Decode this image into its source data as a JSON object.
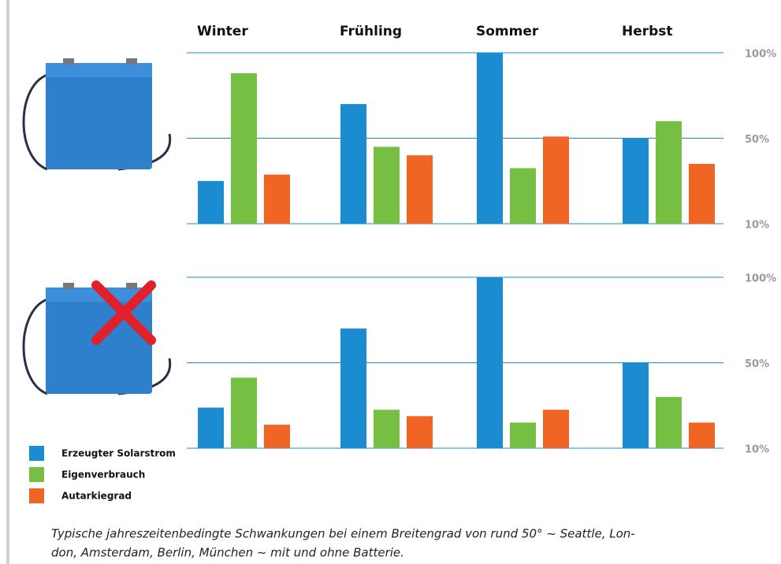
{
  "chart_data": [
    {
      "type": "bar",
      "categories": [
        "Winter",
        "Frühling",
        "Sommer",
        "Herbst"
      ],
      "series": [
        {
          "name": "Erzeugter Solarstrom",
          "color": "#1b8ccf",
          "values": [
            30,
            70,
            100,
            50
          ]
        },
        {
          "name": "Eigenverbrauch",
          "color": "#76bf43",
          "values": [
            88,
            46,
            36,
            60
          ]
        },
        {
          "name": "Autarkiegrad",
          "color": "#f06424",
          "values": [
            33,
            42,
            51,
            38
          ]
        }
      ],
      "ylim": [
        10,
        100
      ],
      "yticks": [
        {
          "value": 10,
          "label": "10%"
        },
        {
          "value": 50,
          "label": "50%"
        },
        {
          "value": 100,
          "label": "100%"
        }
      ],
      "grid": true
    },
    {
      "type": "bar",
      "series": [
        {
          "color": "#1b8ccf",
          "values": [
            29,
            70,
            100,
            50
          ]
        },
        {
          "color": "#76bf43",
          "values": [
            43,
            28,
            22,
            34
          ]
        },
        {
          "color": "#f06424",
          "values": [
            21,
            25,
            28,
            22
          ]
        }
      ],
      "ylim": [
        10,
        100
      ],
      "yticks": [
        {
          "value": 10,
          "label": "10%"
        },
        {
          "value": 50,
          "label": "50%"
        },
        {
          "value": 100,
          "label": "100%"
        }
      ],
      "grid": true
    }
  ],
  "caption": [
    "Typische jahreszeitenbedingte Schwankungen bei einem Breitengrad von rund 50° ~ Seattle, Lon-",
    "don, Amsterdam, Berlin, München ~ mit und ohne Batterie."
  ]
}
